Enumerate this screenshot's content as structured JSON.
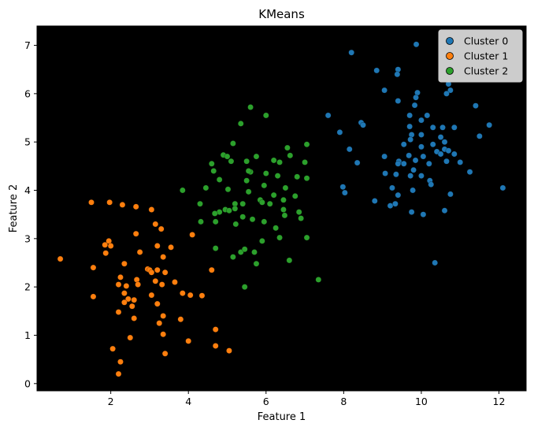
{
  "chart_data": {
    "type": "scatter",
    "title": "KMeans",
    "xlabel": "Feature 1",
    "ylabel": "Feature 2",
    "xlim": [
      0.1,
      12.7
    ],
    "ylim": [
      -0.15,
      7.4
    ],
    "xticks": [
      2,
      4,
      6,
      8,
      10,
      12
    ],
    "yticks": [
      0,
      1,
      2,
      3,
      4,
      5,
      6,
      7
    ],
    "background": "#000000",
    "grid": false,
    "legend_position": "top-right",
    "series": [
      {
        "name": "Cluster 0",
        "color": "#1f77b4",
        "points": [
          [
            8.2,
            6.85
          ],
          [
            9.87,
            7.02
          ],
          [
            8.85,
            6.48
          ],
          [
            9.4,
            6.5
          ],
          [
            9.38,
            6.4
          ],
          [
            9.05,
            6.07
          ],
          [
            9.9,
            6.02
          ],
          [
            9.86,
            5.92
          ],
          [
            9.83,
            5.76
          ],
          [
            10.7,
            6.2
          ],
          [
            10.75,
            6.07
          ],
          [
            10.65,
            6.0
          ],
          [
            11.4,
            5.75
          ],
          [
            9.4,
            5.85
          ],
          [
            9.7,
            5.55
          ],
          [
            7.6,
            5.55
          ],
          [
            10.0,
            5.45
          ],
          [
            10.15,
            5.55
          ],
          [
            10.5,
            5.1
          ],
          [
            8.45,
            5.4
          ],
          [
            8.5,
            5.35
          ],
          [
            9.7,
            5.32
          ],
          [
            9.75,
            5.15
          ],
          [
            9.72,
            5.05
          ],
          [
            10.0,
            5.15
          ],
          [
            10.3,
            5.3
          ],
          [
            10.55,
            5.3
          ],
          [
            10.85,
            5.3
          ],
          [
            11.75,
            5.35
          ],
          [
            11.5,
            5.12
          ],
          [
            7.9,
            5.2
          ],
          [
            8.15,
            4.85
          ],
          [
            9.55,
            4.95
          ],
          [
            10.3,
            4.95
          ],
          [
            10.6,
            5.0
          ],
          [
            10.6,
            4.85
          ],
          [
            10.7,
            4.82
          ],
          [
            10.0,
            4.9
          ],
          [
            10.4,
            4.8
          ],
          [
            10.5,
            4.75
          ],
          [
            10.85,
            4.75
          ],
          [
            9.05,
            4.7
          ],
          [
            9.68,
            4.72
          ],
          [
            9.55,
            4.55
          ],
          [
            9.42,
            4.6
          ],
          [
            9.4,
            4.55
          ],
          [
            10.05,
            4.7
          ],
          [
            10.2,
            4.55
          ],
          [
            10.65,
            4.6
          ],
          [
            11.0,
            4.58
          ],
          [
            11.25,
            4.38
          ],
          [
            8.35,
            4.57
          ],
          [
            9.8,
            4.42
          ],
          [
            9.85,
            4.62
          ],
          [
            9.07,
            4.35
          ],
          [
            9.35,
            4.33
          ],
          [
            9.72,
            4.3
          ],
          [
            10.0,
            4.3
          ],
          [
            10.22,
            4.2
          ],
          [
            10.25,
            4.12
          ],
          [
            7.98,
            4.07
          ],
          [
            8.03,
            3.95
          ],
          [
            9.25,
            4.05
          ],
          [
            9.78,
            4.0
          ],
          [
            9.4,
            3.9
          ],
          [
            10.75,
            3.92
          ],
          [
            12.1,
            4.05
          ],
          [
            8.8,
            3.78
          ],
          [
            9.2,
            3.68
          ],
          [
            9.33,
            3.72
          ],
          [
            9.75,
            3.55
          ],
          [
            10.05,
            3.5
          ],
          [
            10.6,
            3.58
          ],
          [
            10.35,
            2.5
          ]
        ]
      },
      {
        "name": "Cluster 1",
        "color": "#ff7f0e",
        "points": [
          [
            1.5,
            3.75
          ],
          [
            1.97,
            3.75
          ],
          [
            2.3,
            3.7
          ],
          [
            2.65,
            3.66
          ],
          [
            3.05,
            3.6
          ],
          [
            3.15,
            3.3
          ],
          [
            3.3,
            3.2
          ],
          [
            2.65,
            3.1
          ],
          [
            4.1,
            3.08
          ],
          [
            1.95,
            2.95
          ],
          [
            1.85,
            2.87
          ],
          [
            2.0,
            2.85
          ],
          [
            3.2,
            2.85
          ],
          [
            3.55,
            2.82
          ],
          [
            2.75,
            2.72
          ],
          [
            1.87,
            2.7
          ],
          [
            3.35,
            2.62
          ],
          [
            0.7,
            2.58
          ],
          [
            2.35,
            2.48
          ],
          [
            1.55,
            2.4
          ],
          [
            2.95,
            2.37
          ],
          [
            3.0,
            2.35
          ],
          [
            3.05,
            2.3
          ],
          [
            3.2,
            2.35
          ],
          [
            3.4,
            2.3
          ],
          [
            4.6,
            2.35
          ],
          [
            2.25,
            2.2
          ],
          [
            2.67,
            2.15
          ],
          [
            2.7,
            2.05
          ],
          [
            3.15,
            2.12
          ],
          [
            3.65,
            2.1
          ],
          [
            2.2,
            2.05
          ],
          [
            2.4,
            2.02
          ],
          [
            3.32,
            2.05
          ],
          [
            3.85,
            1.87
          ],
          [
            2.35,
            1.87
          ],
          [
            3.05,
            1.83
          ],
          [
            4.05,
            1.83
          ],
          [
            4.35,
            1.82
          ],
          [
            1.55,
            1.8
          ],
          [
            2.45,
            1.75
          ],
          [
            2.6,
            1.73
          ],
          [
            2.35,
            1.68
          ],
          [
            2.55,
            1.6
          ],
          [
            3.2,
            1.65
          ],
          [
            2.2,
            1.48
          ],
          [
            3.35,
            1.4
          ],
          [
            2.6,
            1.35
          ],
          [
            3.8,
            1.33
          ],
          [
            3.25,
            1.25
          ],
          [
            4.7,
            1.12
          ],
          [
            3.35,
            1.02
          ],
          [
            2.5,
            0.95
          ],
          [
            4.0,
            0.88
          ],
          [
            4.7,
            0.78
          ],
          [
            2.05,
            0.72
          ],
          [
            5.05,
            0.68
          ],
          [
            3.4,
            0.62
          ],
          [
            2.25,
            0.45
          ],
          [
            2.2,
            0.2
          ]
        ]
      },
      {
        "name": "Cluster 2",
        "color": "#2ca02c",
        "points": [
          [
            5.6,
            5.72
          ],
          [
            6.0,
            5.55
          ],
          [
            5.35,
            5.38
          ],
          [
            5.15,
            4.97
          ],
          [
            6.55,
            4.88
          ],
          [
            7.05,
            4.95
          ],
          [
            4.9,
            4.73
          ],
          [
            5.0,
            4.7
          ],
          [
            5.75,
            4.7
          ],
          [
            6.2,
            4.62
          ],
          [
            6.62,
            4.72
          ],
          [
            5.5,
            4.6
          ],
          [
            5.1,
            4.6
          ],
          [
            4.6,
            4.55
          ],
          [
            6.35,
            4.58
          ],
          [
            7.0,
            4.58
          ],
          [
            4.65,
            4.4
          ],
          [
            5.6,
            4.38
          ],
          [
            5.55,
            4.4
          ],
          [
            6.0,
            4.35
          ],
          [
            6.3,
            4.3
          ],
          [
            6.8,
            4.28
          ],
          [
            7.05,
            4.25
          ],
          [
            4.8,
            4.22
          ],
          [
            5.5,
            4.2
          ],
          [
            5.95,
            4.1
          ],
          [
            6.5,
            4.05
          ],
          [
            3.85,
            4.0
          ],
          [
            4.45,
            4.05
          ],
          [
            5.55,
            3.97
          ],
          [
            5.02,
            4.02
          ],
          [
            6.2,
            3.9
          ],
          [
            6.75,
            3.88
          ],
          [
            5.85,
            3.8
          ],
          [
            6.45,
            3.8
          ],
          [
            4.3,
            3.72
          ],
          [
            5.2,
            3.72
          ],
          [
            5.4,
            3.72
          ],
          [
            5.9,
            3.75
          ],
          [
            6.1,
            3.72
          ],
          [
            5.2,
            3.62
          ],
          [
            4.95,
            3.6
          ],
          [
            4.8,
            3.55
          ],
          [
            4.68,
            3.52
          ],
          [
            5.05,
            3.58
          ],
          [
            6.45,
            3.6
          ],
          [
            6.85,
            3.55
          ],
          [
            6.48,
            3.48
          ],
          [
            6.9,
            3.42
          ],
          [
            4.32,
            3.35
          ],
          [
            4.7,
            3.35
          ],
          [
            5.22,
            3.3
          ],
          [
            5.65,
            3.4
          ],
          [
            5.4,
            3.45
          ],
          [
            5.95,
            3.35
          ],
          [
            6.25,
            3.22
          ],
          [
            5.9,
            2.95
          ],
          [
            6.35,
            3.02
          ],
          [
            7.05,
            3.02
          ],
          [
            4.7,
            2.8
          ],
          [
            5.35,
            2.72
          ],
          [
            5.45,
            2.78
          ],
          [
            5.7,
            2.72
          ],
          [
            5.15,
            2.62
          ],
          [
            5.75,
            2.48
          ],
          [
            6.6,
            2.55
          ],
          [
            5.45,
            2.0
          ],
          [
            7.35,
            2.15
          ]
        ]
      }
    ]
  }
}
